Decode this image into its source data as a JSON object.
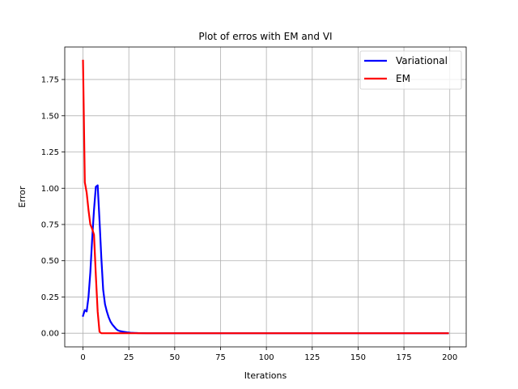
{
  "chart_data": {
    "type": "line",
    "title": "Plot of erros with EM and VI",
    "xlabel": "Iterations",
    "ylabel": "Error",
    "xlim": [
      -9.95,
      208.95
    ],
    "ylim": [
      -0.094,
      1.974
    ],
    "xticks": [
      0,
      25,
      50,
      75,
      100,
      125,
      150,
      175,
      200
    ],
    "xtick_labels": [
      "0",
      "25",
      "50",
      "75",
      "100",
      "125",
      "150",
      "175",
      "200"
    ],
    "yticks": [
      0.0,
      0.25,
      0.5,
      0.75,
      1.0,
      1.25,
      1.5,
      1.75
    ],
    "ytick_labels": [
      "0.00",
      "0.25",
      "0.50",
      "0.75",
      "1.00",
      "1.25",
      "1.50",
      "1.75"
    ],
    "grid": true,
    "legend_position": "top-right",
    "series": [
      {
        "name": "Variational",
        "color": "#0000ff",
        "x": [
          0,
          1,
          2,
          3,
          4,
          5,
          6,
          7,
          8,
          9,
          10,
          11,
          12,
          13,
          14,
          15,
          16,
          17,
          18,
          19,
          20,
          22,
          24,
          26,
          28,
          30,
          35,
          40,
          50,
          75,
          100,
          125,
          150,
          175,
          199
        ],
        "y": [
          0.12,
          0.16,
          0.15,
          0.25,
          0.42,
          0.65,
          0.85,
          1.01,
          1.02,
          0.78,
          0.52,
          0.3,
          0.2,
          0.15,
          0.11,
          0.08,
          0.06,
          0.045,
          0.03,
          0.02,
          0.015,
          0.01,
          0.006,
          0.003,
          0.002,
          0.001,
          0.0,
          0.0,
          0.0,
          0.0,
          0.0,
          0.0,
          0.0,
          0.0,
          0.0
        ]
      },
      {
        "name": "EM",
        "color": "#ff0000",
        "x": [
          0,
          1,
          2,
          3,
          4,
          5,
          6,
          7,
          8,
          9,
          10,
          15,
          20,
          50,
          100,
          150,
          199
        ],
        "y": [
          1.88,
          1.04,
          0.97,
          0.85,
          0.75,
          0.72,
          0.68,
          0.4,
          0.15,
          0.01,
          0.0,
          0.0,
          0.0,
          0.0,
          0.0,
          0.0,
          0.0
        ]
      }
    ]
  }
}
